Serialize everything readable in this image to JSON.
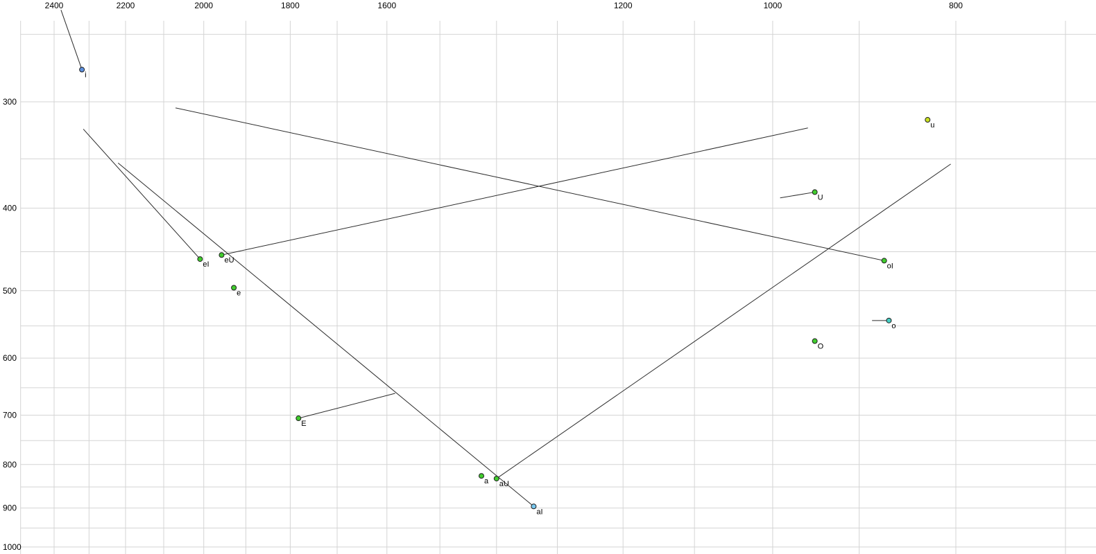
{
  "chart_data": {
    "type": "scatter",
    "title": "",
    "description": "Vowel formant chart: F2 (Hz, log scale, reversed) across the top axis, F1 (Hz, log scale, reversed) down the left axis, with vowel targets and diphthong trajectory lines.",
    "x_axis": {
      "position": "top",
      "scale": "log",
      "reversed": true,
      "unit": "Hz",
      "ticks": [
        2400,
        2200,
        2000,
        1800,
        1600,
        1200,
        1000,
        800
      ],
      "grid_min": 700,
      "grid_max": 2500,
      "grid_step": 100
    },
    "y_axis": {
      "position": "left",
      "scale": "log",
      "reversed": true,
      "unit": "Hz",
      "ticks": [
        300,
        400,
        500,
        600,
        700,
        800,
        900,
        1000
      ],
      "grid_min": 250,
      "grid_max": 1000,
      "grid_step": 50
    },
    "grid": true,
    "legend": false,
    "points": [
      {
        "label": "i",
        "f2": 2320,
        "f1": 275,
        "color": "#5c8fdd",
        "traj": {
          "f2": 2380,
          "f1": 234
        }
      },
      {
        "label": "u",
        "f2": 828,
        "f1": 315,
        "color": "#c9e022",
        "traj": null
      },
      {
        "label": "U",
        "f2": 950,
        "f1": 383,
        "color": "#41cc2e",
        "traj": {
          "f2": 991,
          "f1": 389
        }
      },
      {
        "label": "eI",
        "f2": 2009,
        "f1": 459,
        "color": "#41cc2e",
        "traj": {
          "f2": 2316,
          "f1": 323
        }
      },
      {
        "label": "eU",
        "f2": 1957,
        "f1": 454,
        "color": "#41cc2e",
        "traj": {
          "f2": 958,
          "f1": 322
        }
      },
      {
        "label": "e",
        "f2": 1928,
        "f1": 496,
        "color": "#41cc2e",
        "traj": null
      },
      {
        "label": "oI",
        "f2": 873,
        "f1": 461,
        "color": "#41cc2e",
        "traj": {
          "f2": 2070,
          "f1": 305
        }
      },
      {
        "label": "o",
        "f2": 868,
        "f1": 542,
        "color": "#45cfc4",
        "traj": {
          "f2": 886,
          "f1": 542
        }
      },
      {
        "label": "O",
        "f2": 950,
        "f1": 573,
        "color": "#41cc2e",
        "traj": null
      },
      {
        "label": "E",
        "f2": 1782,
        "f1": 706,
        "color": "#41cc2e",
        "traj": {
          "f2": 1584,
          "f1": 660
        }
      },
      {
        "label": "a",
        "f2": 1426,
        "f1": 825,
        "color": "#41cc2e",
        "traj": null
      },
      {
        "label": "aU",
        "f2": 1400,
        "f1": 831,
        "color": "#41cc2e",
        "traj": {
          "f2": 805,
          "f1": 355
        }
      },
      {
        "label": "aI",
        "f2": 1338,
        "f1": 896,
        "color": "#79c8ef",
        "traj": {
          "f2": 2220,
          "f1": 354
        }
      }
    ]
  },
  "colors": {
    "background": "#ffffff",
    "grid": "#d4d4d4",
    "line": "#2b2b2b",
    "point_stroke": "#1e1e1e",
    "label": "#000000",
    "tick_text": "#000000"
  }
}
